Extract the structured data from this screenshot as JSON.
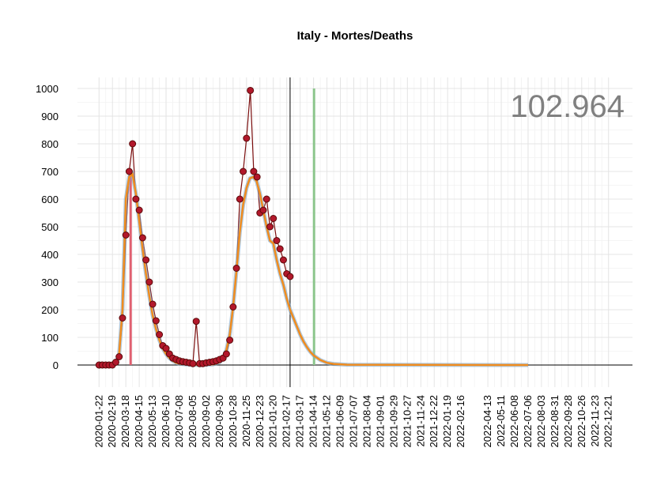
{
  "chart_data": {
    "type": "scatter",
    "title": "Italy - Mortes/Deaths",
    "annotation": "102.964",
    "xlim": [
      "2019-12-08",
      "2023-02-09"
    ],
    "ylim": [
      -80,
      1040
    ],
    "yticks": [
      0,
      100,
      200,
      300,
      400,
      500,
      600,
      700,
      800,
      900,
      1000
    ],
    "xticks": [
      "2020-01-22",
      "2020-02-19",
      "2020-03-18",
      "2020-04-15",
      "2020-05-13",
      "2020-06-10",
      "2020-07-08",
      "2020-08-05",
      "2020-09-02",
      "2020-09-30",
      "2020-10-28",
      "2020-11-25",
      "2020-12-23",
      "2021-01-20",
      "2021-02-17",
      "2021-03-17",
      "2021-04-14",
      "2021-05-12",
      "2021-06-09",
      "2021-07-07",
      "2021-08-04",
      "2021-09-01",
      "2021-09-29",
      "2021-10-27",
      "2021-11-24",
      "2021-12-22",
      "2022-01-19",
      "2022-02-16",
      "2022-04-13",
      "2022-05-11",
      "2022-06-08",
      "2022-07-06",
      "2022-08-03",
      "2022-08-31",
      "2022-09-28",
      "2022-10-26",
      "2022-11-23",
      "2022-12-21"
    ],
    "grid": true,
    "last_date_line": "2021-02-24",
    "peak_line": "2020-03-28",
    "forecast_line": "2021-04-15",
    "points": {
      "color": "#b2182b",
      "x": [
        "2020-01-22",
        "2020-01-29",
        "2020-02-05",
        "2020-02-12",
        "2020-02-19",
        "2020-02-26",
        "2020-03-04",
        "2020-03-11",
        "2020-03-18",
        "2020-03-25",
        "2020-04-01",
        "2020-04-08",
        "2020-04-15",
        "2020-04-22",
        "2020-04-29",
        "2020-05-06",
        "2020-05-13",
        "2020-05-20",
        "2020-05-27",
        "2020-06-03",
        "2020-06-10",
        "2020-06-17",
        "2020-06-24",
        "2020-07-01",
        "2020-07-08",
        "2020-07-15",
        "2020-07-22",
        "2020-07-29",
        "2020-08-05",
        "2020-08-12",
        "2020-08-19",
        "2020-08-26",
        "2020-09-02",
        "2020-09-09",
        "2020-09-16",
        "2020-09-23",
        "2020-09-30",
        "2020-10-07",
        "2020-10-14",
        "2020-10-21",
        "2020-10-28",
        "2020-11-04",
        "2020-11-11",
        "2020-11-18",
        "2020-11-25",
        "2020-12-03",
        "2020-12-10",
        "2020-12-17",
        "2020-12-23",
        "2020-12-30",
        "2021-01-06",
        "2021-01-13",
        "2021-01-20",
        "2021-01-27",
        "2021-02-03",
        "2021-02-10",
        "2021-02-17",
        "2021-02-24"
      ],
      "values": [
        0,
        0,
        0,
        0,
        0,
        10,
        30,
        170,
        470,
        700,
        800,
        600,
        560,
        460,
        380,
        300,
        220,
        160,
        110,
        70,
        60,
        40,
        25,
        20,
        15,
        12,
        10,
        8,
        5,
        158,
        5,
        5,
        8,
        10,
        12,
        15,
        20,
        25,
        40,
        90,
        210,
        350,
        600,
        700,
        820,
        993,
        700,
        680,
        550,
        560,
        600,
        500,
        530,
        450,
        420,
        380,
        330,
        320
      ]
    },
    "fit": {
      "color": "#f08c1e",
      "x": [
        "2020-02-19",
        "2020-02-26",
        "2020-03-04",
        "2020-03-11",
        "2020-03-18",
        "2020-03-25",
        "2020-04-01",
        "2020-04-08",
        "2020-04-15",
        "2020-04-22",
        "2020-04-29",
        "2020-05-06",
        "2020-05-13",
        "2020-05-20",
        "2020-05-27",
        "2020-06-03",
        "2020-06-10",
        "2020-06-17",
        "2020-06-24",
        "2020-07-01",
        "2020-07-08",
        "2020-07-22",
        "2020-08-19",
        "2020-09-16",
        "2020-09-30",
        "2020-10-07",
        "2020-10-14",
        "2020-10-21",
        "2020-10-28",
        "2020-11-04",
        "2020-11-11",
        "2020-11-18",
        "2020-11-25",
        "2020-12-02",
        "2020-12-09",
        "2020-12-16",
        "2020-12-23",
        "2020-12-30",
        "2021-01-06",
        "2021-01-13",
        "2021-01-20",
        "2021-01-27",
        "2021-02-03",
        "2021-02-10",
        "2021-02-17",
        "2021-02-24",
        "2021-03-03",
        "2021-03-10",
        "2021-03-17",
        "2021-03-24",
        "2021-03-31",
        "2021-04-07",
        "2021-04-14",
        "2021-04-28",
        "2021-05-12",
        "2021-05-26",
        "2021-06-23",
        "2022-07-06"
      ],
      "values": [
        0,
        5,
        40,
        200,
        600,
        680,
        690,
        620,
        520,
        420,
        330,
        250,
        180,
        130,
        90,
        60,
        40,
        25,
        15,
        8,
        5,
        2,
        0,
        2,
        10,
        25,
        55,
        110,
        210,
        340,
        480,
        580,
        640,
        675,
        680,
        665,
        620,
        560,
        500,
        450,
        440,
        380,
        330,
        290,
        240,
        200,
        170,
        140,
        110,
        85,
        65,
        48,
        35,
        18,
        8,
        4,
        1,
        0
      ]
    }
  }
}
